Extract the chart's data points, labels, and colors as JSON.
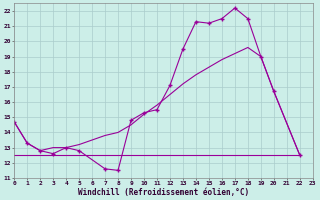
{
  "xlabel": "Windchill (Refroidissement éolien,°C)",
  "bg_color": "#cceee8",
  "grid_color": "#aacccc",
  "line_color": "#990099",
  "xlim": [
    0,
    23
  ],
  "ylim": [
    11,
    22.5
  ],
  "yticks": [
    11,
    12,
    13,
    14,
    15,
    16,
    17,
    18,
    19,
    20,
    21,
    22
  ],
  "xticks": [
    0,
    1,
    2,
    3,
    4,
    5,
    6,
    7,
    8,
    9,
    10,
    11,
    12,
    13,
    14,
    15,
    16,
    17,
    18,
    19,
    20,
    21,
    22,
    23
  ],
  "series1_x": [
    0,
    1,
    2,
    3,
    4,
    5,
    7,
    8,
    9,
    10,
    11,
    12,
    13,
    14,
    15,
    16,
    17,
    18,
    19,
    20,
    22
  ],
  "series1_y": [
    14.7,
    13.3,
    12.8,
    12.6,
    13.0,
    12.8,
    11.6,
    11.5,
    14.8,
    15.3,
    15.5,
    17.1,
    19.5,
    21.3,
    21.2,
    21.5,
    22.2,
    21.5,
    19.0,
    16.7,
    12.5
  ],
  "series2_x": [
    0,
    1,
    2,
    3,
    4,
    5,
    6,
    7,
    8,
    9,
    10,
    11,
    12,
    13,
    14,
    15,
    16,
    17,
    18,
    19,
    20,
    22
  ],
  "series2_y": [
    14.7,
    13.3,
    12.8,
    13.0,
    13.0,
    13.2,
    13.5,
    13.8,
    14.0,
    14.5,
    15.2,
    15.8,
    16.5,
    17.2,
    17.8,
    18.3,
    18.8,
    19.2,
    19.6,
    19.0,
    16.7,
    12.5
  ],
  "series3_x": [
    0,
    22
  ],
  "series3_y": [
    12.5,
    12.5
  ],
  "marker": "+"
}
